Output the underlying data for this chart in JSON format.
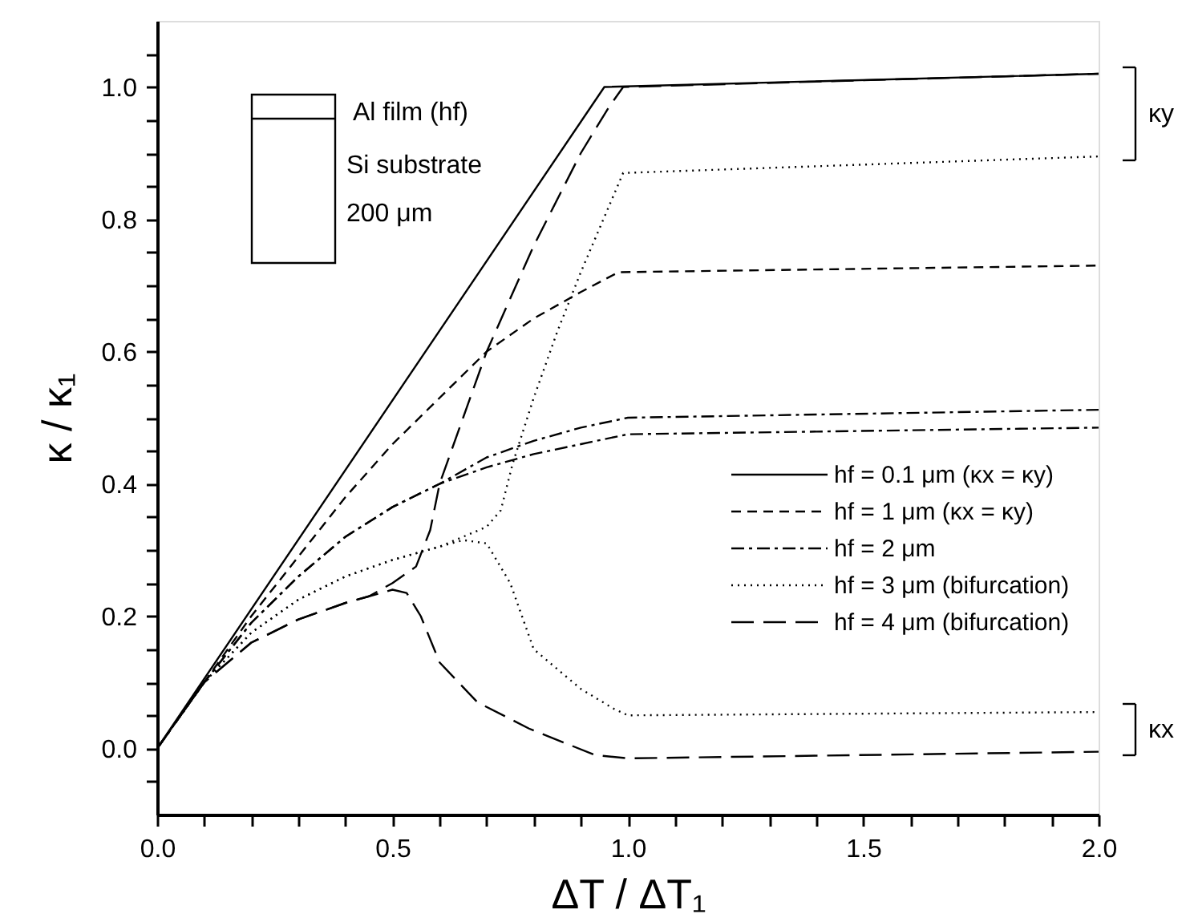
{
  "chart_data": {
    "type": "line",
    "xlabel": "ΔT / ΔT₁",
    "ylabel": "κ / κ₁",
    "xlim": [
      0,
      2.0
    ],
    "ylim": [
      -0.1,
      1.1
    ],
    "xticks": [
      {
        "value": 0,
        "label": "0.0"
      },
      {
        "value": 0.1,
        "label": null
      },
      {
        "value": 0.2,
        "label": null
      },
      {
        "value": 0.3,
        "label": null
      },
      {
        "value": 0.4,
        "label": null
      },
      {
        "value": 0.5,
        "label": "0.5"
      },
      {
        "value": 0.6,
        "label": null
      },
      {
        "value": 0.7,
        "label": null
      },
      {
        "value": 0.8,
        "label": null
      },
      {
        "value": 0.9,
        "label": null
      },
      {
        "value": 1.0,
        "label": "1.0"
      },
      {
        "value": 1.1,
        "label": null
      },
      {
        "value": 1.2,
        "label": null
      },
      {
        "value": 1.3,
        "label": null
      },
      {
        "value": 1.4,
        "label": null
      },
      {
        "value": 1.5,
        "label": "1.5"
      },
      {
        "value": 1.6,
        "label": null
      },
      {
        "value": 1.7,
        "label": null
      },
      {
        "value": 1.8,
        "label": null
      },
      {
        "value": 1.9,
        "label": null
      },
      {
        "value": 2.0,
        "label": "2.0"
      }
    ],
    "yticks": [
      {
        "value": -0.05,
        "label": null
      },
      {
        "value": 0,
        "label": "0.0"
      },
      {
        "value": 0.05,
        "label": null
      },
      {
        "value": 0.1,
        "label": null
      },
      {
        "value": 0.15,
        "label": null
      },
      {
        "value": 0.2,
        "label": "0.2"
      },
      {
        "value": 0.25,
        "label": null
      },
      {
        "value": 0.3,
        "label": null
      },
      {
        "value": 0.35,
        "label": null
      },
      {
        "value": 0.4,
        "label": "0.4"
      },
      {
        "value": 0.45,
        "label": null
      },
      {
        "value": 0.5,
        "label": null
      },
      {
        "value": 0.55,
        "label": null
      },
      {
        "value": 0.6,
        "label": "0.6"
      },
      {
        "value": 0.65,
        "label": null
      },
      {
        "value": 0.7,
        "label": null
      },
      {
        "value": 0.75,
        "label": null
      },
      {
        "value": 0.8,
        "label": "0.8"
      },
      {
        "value": 0.85,
        "label": null
      },
      {
        "value": 0.9,
        "label": null
      },
      {
        "value": 0.95,
        "label": null
      },
      {
        "value": 1.0,
        "label": "1.0"
      },
      {
        "value": 1.05,
        "label": null
      }
    ],
    "grid": false,
    "legend": "right",
    "marker": "none",
    "series": [
      {
        "name": "hf = 0.1 μm (κx = κy)",
        "color": "#000000",
        "line_style": "solid",
        "x": [
          0,
          0.95,
          2.0
        ],
        "values": [
          0,
          1.0,
          1.02
        ]
      },
      {
        "name": "hf = 1 μm (κx = κy)",
        "color": "#000000",
        "line_style": "dashed",
        "x": [
          0,
          0.1,
          0.2,
          0.3,
          0.4,
          0.5,
          0.6,
          0.7,
          0.8,
          0.9,
          0.98,
          2.0
        ],
        "values": [
          0,
          0.1,
          0.2,
          0.29,
          0.38,
          0.46,
          0.53,
          0.6,
          0.65,
          0.69,
          0.72,
          0.73
        ]
      },
      {
        "name": "hf = 2 μm",
        "color": "#000000",
        "line_style": "dashdot",
        "x": [
          0,
          0.1,
          0.2,
          0.3,
          0.4,
          0.5,
          0.6,
          0.7,
          0.8,
          0.9,
          1.0,
          2.0
        ],
        "values": [
          0,
          0.1,
          0.19,
          0.26,
          0.32,
          0.365,
          0.4,
          0.44,
          0.465,
          0.485,
          0.5,
          0.512
        ]
      },
      {
        "color": "#000000",
        "line_style": "dashdot",
        "x": [
          0,
          0.1,
          0.2,
          0.3,
          0.4,
          0.5,
          0.6,
          0.7,
          0.8,
          0.9,
          1.0,
          2.0
        ],
        "values": [
          0,
          0.1,
          0.19,
          0.26,
          0.32,
          0.365,
          0.4,
          0.425,
          0.445,
          0.46,
          0.475,
          0.485
        ]
      },
      {
        "name": "hf = 3 μm (bifurcation)",
        "color": "#000000",
        "line_style": "dotted",
        "x": [
          0,
          0.1,
          0.2,
          0.3,
          0.4,
          0.5,
          0.6,
          0.65,
          0.7,
          0.73,
          0.755,
          0.8,
          0.85,
          0.9,
          0.96,
          0.99,
          2.0
        ],
        "values": [
          0,
          0.1,
          0.175,
          0.225,
          0.26,
          0.285,
          0.305,
          0.32,
          0.335,
          0.36,
          0.43,
          0.53,
          0.63,
          0.72,
          0.82,
          0.87,
          0.895
        ]
      },
      {
        "color": "#000000",
        "line_style": "dotted",
        "x": [
          0,
          0.1,
          0.2,
          0.3,
          0.4,
          0.5,
          0.6,
          0.65,
          0.7,
          0.75,
          0.8,
          0.9,
          0.97,
          1.0,
          2.0
        ],
        "values": [
          0,
          0.1,
          0.175,
          0.225,
          0.26,
          0.285,
          0.305,
          0.315,
          0.31,
          0.25,
          0.15,
          0.09,
          0.06,
          0.05,
          0.055
        ]
      },
      {
        "name": "hf = 4 μm (bifurcation)",
        "color": "#000000",
        "line_style": "longdash",
        "x": [
          0,
          0.1,
          0.2,
          0.3,
          0.4,
          0.45,
          0.5,
          0.55,
          0.58,
          0.6,
          0.65,
          0.7,
          0.8,
          0.9,
          0.96,
          0.99,
          2.0
        ],
        "values": [
          0,
          0.1,
          0.16,
          0.195,
          0.22,
          0.23,
          0.25,
          0.275,
          0.33,
          0.4,
          0.5,
          0.6,
          0.76,
          0.9,
          0.97,
          1.0,
          1.02
        ]
      },
      {
        "color": "#000000",
        "line_style": "longdash",
        "x": [
          0,
          0.1,
          0.2,
          0.3,
          0.4,
          0.45,
          0.5,
          0.53,
          0.56,
          0.6,
          0.68,
          0.79,
          0.93,
          1.0,
          2.0
        ],
        "values": [
          0,
          0.1,
          0.16,
          0.195,
          0.22,
          0.23,
          0.24,
          0.235,
          0.2,
          0.13,
          0.07,
          0.03,
          -0.01,
          -0.015,
          -0.005
        ]
      }
    ],
    "annotations": [
      "Al film (hf)",
      "Si substrate",
      "200 μm",
      "κy",
      "κx"
    ]
  }
}
